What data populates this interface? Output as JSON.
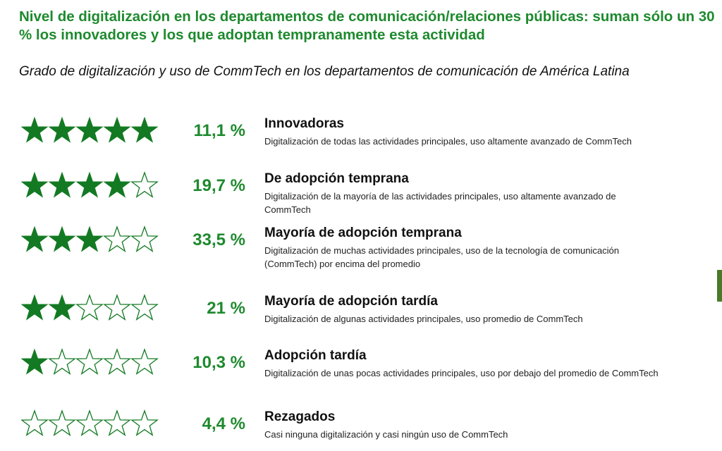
{
  "header": {
    "title_a_bold": "Nivel de digitalización",
    "title_b": " en los departamentos de comunicación/relaciones públicas: suman sólo un 30 % los ",
    "title_c_bold": "innovadores y los que adoptan tempranamente esta actividad",
    "subtitle": "Grado de digitalización y uso de CommTech en los departamentos de comunicación de América Latina"
  },
  "colors": {
    "accent": "#1e8a2e",
    "star_fill": "#137a23",
    "side_bar": "#4a7a28"
  },
  "chart_data": {
    "type": "table",
    "max_stars": 5,
    "rows": [
      {
        "name": "Innovadoras",
        "percent": "11,1 %",
        "value": 11.1,
        "stars": 5,
        "description": "Digitalización de todas las actividades principales, uso altamente avanzado de CommTech"
      },
      {
        "name": "De adopción temprana",
        "percent": "19,7 %",
        "value": 19.7,
        "stars": 4,
        "description": "Digitalización de la mayoría de las actividades principales, uso altamente avanzado de CommTech"
      },
      {
        "name": "Mayoría de adopción temprana",
        "percent": "33,5 %",
        "value": 33.5,
        "stars": 3,
        "description": "Digitalización de muchas actividades principales, uso de la tecnología de comunicación (CommTech) por encima del promedio"
      },
      {
        "name": "Mayoría de adopción tardía",
        "percent": "21 %",
        "value": 21,
        "stars": 2,
        "description": "Digitalización de algunas actividades principales, uso promedio de CommTech"
      },
      {
        "name": "Adopción tardía",
        "percent": "10,3 %",
        "value": 10.3,
        "stars": 1,
        "description": "Digitalización de unas pocas actividades principales, uso por debajo del promedio de CommTech"
      },
      {
        "name": "Rezagados",
        "percent": "4,4 %",
        "value": 4.4,
        "stars": 0,
        "description": "Casi ninguna digitalización y casi ningún uso de CommTech"
      }
    ]
  }
}
